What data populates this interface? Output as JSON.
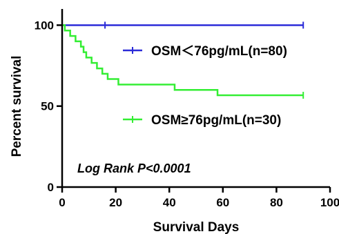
{
  "chart_data": {
    "type": "line",
    "subtype": "kaplan-meier step curve",
    "title": "",
    "xlabel": "Survival Days",
    "ylabel": "Percent survival",
    "xlim": [
      0,
      100
    ],
    "ylim": [
      0,
      110
    ],
    "xticks": [
      0,
      20,
      40,
      60,
      80,
      100
    ],
    "yticks": [
      0,
      50,
      100
    ],
    "grid": false,
    "legend_position": "inside-right",
    "annotation": "Log Rank P<0.0001",
    "series": [
      {
        "name": "OSM＜76pg/mL(n=80)",
        "color": "#2b2bd8",
        "x": [
          0,
          90
        ],
        "y": [
          100,
          100
        ],
        "censor_x": [
          16,
          90
        ]
      },
      {
        "name": "OSM≥76pg/mL(n=30)",
        "color": "#33ee33",
        "x": [
          0,
          1,
          3,
          5,
          7,
          8,
          9,
          11,
          13,
          15,
          17,
          19,
          21,
          42,
          58,
          90
        ],
        "y": [
          100,
          96.7,
          93.3,
          90,
          86.7,
          83.3,
          80,
          76.7,
          73.3,
          70,
          66.7,
          66.7,
          63.3,
          60,
          56.7,
          56.7
        ],
        "censor_x": [
          90
        ]
      }
    ]
  }
}
